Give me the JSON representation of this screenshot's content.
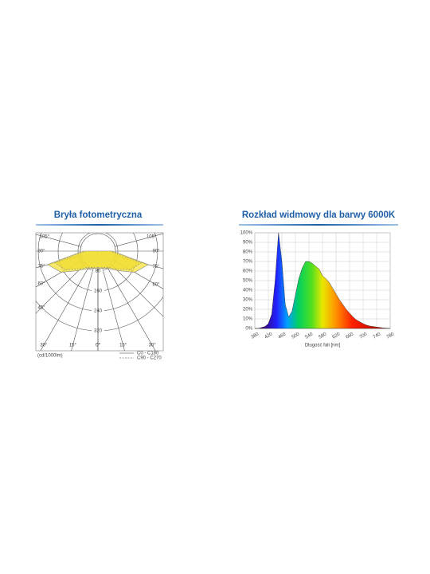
{
  "chart_data": [
    {
      "type": "polar",
      "title": "Bryła fotometryczna",
      "unit_label": "(cd/1000lm)",
      "rlim": [
        0,
        320
      ],
      "rticks": [
        80,
        160,
        240,
        320
      ],
      "angles": [
        0,
        15,
        30,
        45,
        60,
        75,
        90,
        105
      ],
      "angle_ticks": [
        {
          "value": 0,
          "label": "0°"
        },
        {
          "value": 15,
          "label": "15°"
        },
        {
          "value": 30,
          "label": "30°"
        },
        {
          "value": 45,
          "label": "45°"
        },
        {
          "value": 60,
          "label": "60°"
        },
        {
          "value": 75,
          "label": "75°"
        },
        {
          "value": 90,
          "label": "90°"
        },
        {
          "value": 105,
          "label": "105°"
        }
      ],
      "series": [
        {
          "name": "C0 - C180",
          "color": "#f5e23a",
          "dashed": false,
          "values": [
            70,
            72,
            80,
            110,
            170,
            210,
            60,
            0
          ]
        },
        {
          "name": "C90 - C270",
          "color": "#f0dc30",
          "dashed": true,
          "values": [
            65,
            68,
            75,
            100,
            150,
            180,
            50,
            0
          ]
        }
      ]
    },
    {
      "type": "area",
      "title": "Rozkład widmowy dla barwy 6000K",
      "xlabel": "Długość fali [nm]",
      "x": [
        380,
        390,
        400,
        410,
        420,
        430,
        440,
        450,
        460,
        470,
        480,
        490,
        500,
        510,
        520,
        530,
        540,
        550,
        560,
        570,
        580,
        590,
        600,
        610,
        620,
        630,
        640,
        650,
        660,
        670,
        680,
        690,
        700,
        710,
        720,
        730,
        740,
        750,
        760,
        770,
        780
      ],
      "values": [
        0,
        0,
        1,
        2,
        5,
        15,
        50,
        100,
        70,
        25,
        12,
        18,
        35,
        52,
        63,
        70,
        70,
        68,
        65,
        62,
        55,
        52,
        48,
        42,
        36,
        30,
        25,
        20,
        16,
        12,
        9,
        7,
        5,
        3.5,
        2.5,
        2,
        1.5,
        1,
        0.5,
        0.3,
        0
      ],
      "xlim": [
        380,
        780
      ],
      "xticks": [
        380,
        420,
        460,
        500,
        540,
        580,
        620,
        660,
        700,
        740,
        780
      ],
      "ylim": [
        0,
        100
      ],
      "yticks": [
        {
          "value": 0,
          "label": "0%"
        },
        {
          "value": 10,
          "label": "10%"
        },
        {
          "value": 20,
          "label": "20%"
        },
        {
          "value": 30,
          "label": "30%"
        },
        {
          "value": 40,
          "label": "40%"
        },
        {
          "value": 50,
          "label": "50%"
        },
        {
          "value": 60,
          "label": "60%"
        },
        {
          "value": 70,
          "label": "70%"
        },
        {
          "value": 80,
          "label": "80%"
        },
        {
          "value": 90,
          "label": "90%"
        },
        {
          "value": 100,
          "label": "100%"
        }
      ],
      "grid": true
    }
  ]
}
